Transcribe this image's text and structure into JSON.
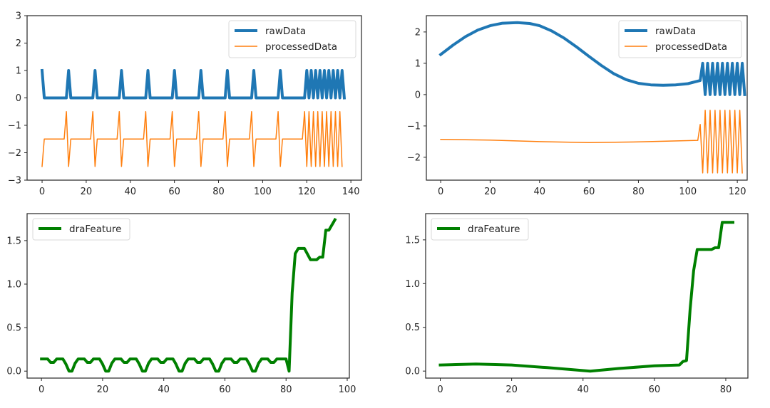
{
  "chart_data": [
    {
      "id": "top-left",
      "type": "line",
      "title": "",
      "xlabel": "",
      "ylabel": "",
      "xlim": [
        -6.8,
        144.8
      ],
      "ylim": [
        -3,
        3
      ],
      "xticks": [
        0,
        20,
        40,
        60,
        80,
        100,
        120,
        140
      ],
      "yticks": [
        -3,
        -2,
        -1,
        0,
        1,
        2,
        3
      ],
      "xtick_labels": [
        "0",
        "20",
        "40",
        "60",
        "80",
        "100",
        "120",
        "140"
      ],
      "ytick_labels": [
        "−3",
        "−2",
        "−1",
        "0",
        "1",
        "2",
        "3"
      ],
      "grid": false,
      "legend": {
        "position": "top-right",
        "entries": [
          "rawData",
          "processedData"
        ]
      },
      "series": [
        {
          "name": "rawData",
          "color": "#1f77b4",
          "width": 4,
          "generator": "pulse-train",
          "params": {
            "period": 12,
            "count": 10,
            "burst_start": 119,
            "burst_end": 137,
            "burst_period": 2,
            "high": 1,
            "low": 0
          }
        },
        {
          "name": "processedData",
          "color": "#ff7f0e",
          "width": 1.5,
          "generator": "spike-train",
          "params": {
            "period": 12,
            "count": 10,
            "burst_start": 119,
            "burst_end": 136,
            "burst_period": 2,
            "base": -1.5,
            "high": -0.5,
            "low": -2.5,
            "start": -2.5
          }
        }
      ]
    },
    {
      "id": "top-right",
      "type": "line",
      "title": "",
      "xlabel": "",
      "ylabel": "",
      "xlim": [
        -5.8,
        124.0
      ],
      "ylim": [
        -2.73,
        2.52
      ],
      "xticks": [
        0,
        20,
        40,
        60,
        80,
        100,
        120
      ],
      "yticks": [
        -2,
        -1,
        0,
        1,
        2
      ],
      "xtick_labels": [
        "0",
        "20",
        "40",
        "60",
        "80",
        "100",
        "120"
      ],
      "ytick_labels": [
        "−2",
        "−1",
        "0",
        "1",
        "2"
      ],
      "grid": false,
      "legend": {
        "position": "top-right",
        "entries": [
          "rawData",
          "processedData"
        ]
      },
      "series": [
        {
          "name": "rawData",
          "color": "#1f77b4",
          "width": 4,
          "points": [
            [
              0,
              1.28
            ],
            [
              5,
              1.58
            ],
            [
              10,
              1.85
            ],
            [
              15,
              2.06
            ],
            [
              20,
              2.2
            ],
            [
              25,
              2.28
            ],
            [
              31,
              2.3
            ],
            [
              36,
              2.27
            ],
            [
              40,
              2.2
            ],
            [
              45,
              2.03
            ],
            [
              50,
              1.8
            ],
            [
              55,
              1.52
            ],
            [
              60,
              1.22
            ],
            [
              65,
              0.93
            ],
            [
              70,
              0.67
            ],
            [
              75,
              0.48
            ],
            [
              80,
              0.36
            ],
            [
              85,
              0.31
            ],
            [
              90,
              0.3
            ],
            [
              95,
              0.31
            ],
            [
              100,
              0.35
            ],
            [
              105,
              0.45
            ],
            [
              106,
              1
            ],
            [
              107,
              0
            ],
            [
              108,
              1
            ],
            [
              109,
              0
            ],
            [
              110,
              1
            ],
            [
              111,
              0
            ],
            [
              112,
              1
            ],
            [
              113,
              0
            ],
            [
              114,
              1
            ],
            [
              115,
              0
            ],
            [
              116,
              1
            ],
            [
              117,
              0
            ],
            [
              118,
              1
            ],
            [
              119,
              0
            ],
            [
              120,
              1
            ],
            [
              121,
              0
            ],
            [
              122,
              1
            ],
            [
              123,
              0
            ]
          ]
        },
        {
          "name": "processedData",
          "color": "#ff7f0e",
          "width": 1.5,
          "points": [
            [
              0,
              -1.43
            ],
            [
              20,
              -1.45
            ],
            [
              40,
              -1.5
            ],
            [
              60,
              -1.53
            ],
            [
              80,
              -1.51
            ],
            [
              104,
              -1.46
            ],
            [
              105,
              -0.95
            ],
            [
              106,
              -2.5
            ],
            [
              107,
              -0.5
            ],
            [
              108,
              -2.5
            ],
            [
              109,
              -0.5
            ],
            [
              110,
              -2.5
            ],
            [
              111,
              -0.5
            ],
            [
              112,
              -2.5
            ],
            [
              113,
              -0.5
            ],
            [
              114,
              -2.5
            ],
            [
              115,
              -0.5
            ],
            [
              116,
              -2.5
            ],
            [
              117,
              -0.5
            ],
            [
              118,
              -2.5
            ],
            [
              119,
              -0.5
            ],
            [
              120,
              -2.5
            ],
            [
              121,
              -0.5
            ],
            [
              122,
              -2.5
            ]
          ]
        }
      ]
    },
    {
      "id": "bottom-left",
      "type": "line",
      "title": "",
      "xlabel": "",
      "ylabel": "",
      "xlim": [
        -4.7,
        100.7
      ],
      "ylim": [
        -0.08,
        1.81
      ],
      "xticks": [
        0,
        20,
        40,
        60,
        80,
        100
      ],
      "yticks": [
        0.0,
        0.5,
        1.0,
        1.5
      ],
      "xtick_labels": [
        "0",
        "20",
        "40",
        "60",
        "80",
        "100"
      ],
      "ytick_labels": [
        "0.0",
        "0.5",
        "1.0",
        "1.5"
      ],
      "grid": false,
      "legend": {
        "position": "top-left",
        "entries": [
          "draFeature"
        ]
      },
      "series": [
        {
          "name": "draFeature",
          "color": "#008000",
          "width": 4,
          "generator": "dip-pattern",
          "params": {
            "period": 12,
            "count": 7,
            "high": 0.14,
            "mid": 0.1,
            "low": 0.0,
            "ramp_start": 81
          },
          "tail": [
            [
              80,
              0.14
            ],
            [
              81,
              0.0
            ],
            [
              82,
              0.9
            ],
            [
              83,
              1.35
            ],
            [
              84,
              1.41
            ],
            [
              86,
              1.41
            ],
            [
              88,
              1.28
            ],
            [
              90,
              1.28
            ],
            [
              91,
              1.31
            ],
            [
              92,
              1.31
            ],
            [
              93,
              1.62
            ],
            [
              94,
              1.62
            ],
            [
              96,
              1.74
            ]
          ]
        }
      ]
    },
    {
      "id": "bottom-right",
      "type": "line",
      "title": "",
      "xlabel": "",
      "ylabel": "",
      "xlim": [
        -4.1,
        86.2
      ],
      "ylim": [
        -0.08,
        1.8
      ],
      "xticks": [
        0,
        20,
        40,
        60,
        80
      ],
      "yticks": [
        0.0,
        0.5,
        1.0,
        1.5
      ],
      "xtick_labels": [
        "0",
        "20",
        "40",
        "60",
        "80"
      ],
      "ytick_labels": [
        "0.0",
        "0.5",
        "1.0",
        "1.5"
      ],
      "grid": false,
      "legend": {
        "position": "top-left",
        "entries": [
          "draFeature"
        ]
      },
      "series": [
        {
          "name": "draFeature",
          "color": "#008000",
          "width": 4,
          "points": [
            [
              0,
              0.07
            ],
            [
              10,
              0.08
            ],
            [
              20,
              0.07
            ],
            [
              30,
              0.04
            ],
            [
              42,
              0.0
            ],
            [
              50,
              0.03
            ],
            [
              60,
              0.06
            ],
            [
              67,
              0.07
            ],
            [
              68,
              0.11
            ],
            [
              69,
              0.12
            ],
            [
              70,
              0.7
            ],
            [
              71,
              1.15
            ],
            [
              72,
              1.39
            ],
            [
              76,
              1.39
            ],
            [
              77,
              1.41
            ],
            [
              78,
              1.41
            ],
            [
              79,
              1.7
            ],
            [
              82,
              1.7
            ]
          ]
        }
      ]
    }
  ]
}
